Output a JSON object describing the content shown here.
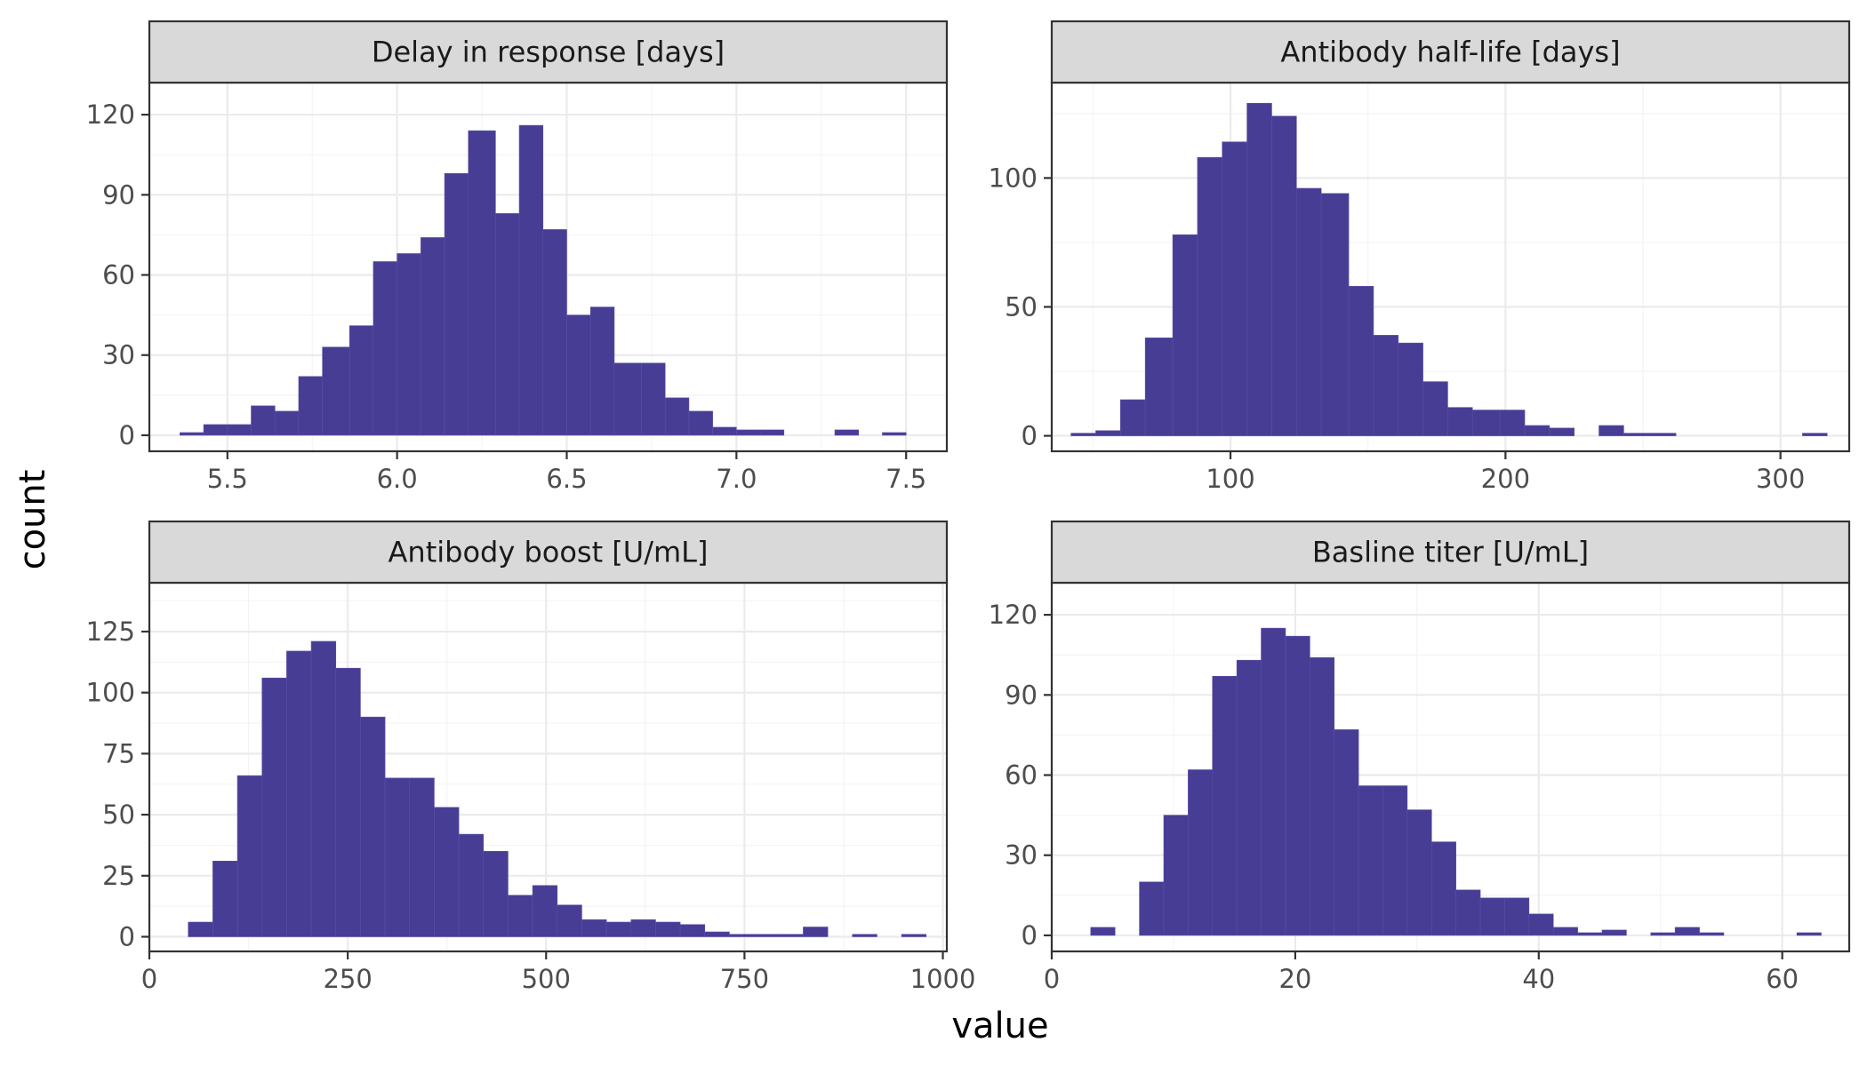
{
  "chart_data": {
    "type": "histogram-facets",
    "xlabel": "value",
    "ylabel": "count",
    "bar_color": "#483D95",
    "panel_background": "#FFFFFF",
    "strip_background": "#D9D9D9",
    "grid": true,
    "facets": [
      {
        "title": "Delay in response [days]",
        "xlim": [
          5.27,
          7.62
        ],
        "ylim": [
          -6,
          132
        ],
        "x_ticks": [
          5.5,
          6.0,
          6.5,
          7.0,
          7.5
        ],
        "x_tick_labels": [
          "5.5",
          "6.0",
          "6.5",
          "7.0",
          "7.5"
        ],
        "y_ticks": [
          0,
          30,
          60,
          90,
          120
        ],
        "y_tick_labels": [
          "0",
          "30",
          "60",
          "90",
          "120"
        ],
        "bins": [
          {
            "x0": 5.36,
            "x1": 5.43,
            "count": 1
          },
          {
            "x0": 5.43,
            "x1": 5.5,
            "count": 4
          },
          {
            "x0": 5.5,
            "x1": 5.57,
            "count": 4
          },
          {
            "x0": 5.57,
            "x1": 5.64,
            "count": 11
          },
          {
            "x0": 5.64,
            "x1": 5.71,
            "count": 9
          },
          {
            "x0": 5.71,
            "x1": 5.78,
            "count": 22
          },
          {
            "x0": 5.78,
            "x1": 5.86,
            "count": 33
          },
          {
            "x0": 5.86,
            "x1": 5.93,
            "count": 41
          },
          {
            "x0": 5.93,
            "x1": 6.0,
            "count": 65
          },
          {
            "x0": 6.0,
            "x1": 6.07,
            "count": 68
          },
          {
            "x0": 6.07,
            "x1": 6.14,
            "count": 74
          },
          {
            "x0": 6.14,
            "x1": 6.21,
            "count": 98
          },
          {
            "x0": 6.21,
            "x1": 6.29,
            "count": 114
          },
          {
            "x0": 6.29,
            "x1": 6.36,
            "count": 83
          },
          {
            "x0": 6.36,
            "x1": 6.43,
            "count": 116
          },
          {
            "x0": 6.43,
            "x1": 6.5,
            "count": 77
          },
          {
            "x0": 6.5,
            "x1": 6.57,
            "count": 45
          },
          {
            "x0": 6.57,
            "x1": 6.64,
            "count": 48
          },
          {
            "x0": 6.64,
            "x1": 6.72,
            "count": 27
          },
          {
            "x0": 6.72,
            "x1": 6.79,
            "count": 27
          },
          {
            "x0": 6.79,
            "x1": 6.86,
            "count": 14
          },
          {
            "x0": 6.86,
            "x1": 6.93,
            "count": 9
          },
          {
            "x0": 6.93,
            "x1": 7.0,
            "count": 3
          },
          {
            "x0": 7.0,
            "x1": 7.07,
            "count": 2
          },
          {
            "x0": 7.07,
            "x1": 7.14,
            "count": 2
          },
          {
            "x0": 7.14,
            "x1": 7.21,
            "count": 0
          },
          {
            "x0": 7.21,
            "x1": 7.29,
            "count": 0
          },
          {
            "x0": 7.29,
            "x1": 7.36,
            "count": 2
          },
          {
            "x0": 7.36,
            "x1": 7.43,
            "count": 0
          },
          {
            "x0": 7.43,
            "x1": 7.5,
            "count": 1
          }
        ]
      },
      {
        "title": "Antibody half-life [days]",
        "xlim": [
          35,
          325
        ],
        "ylim": [
          -6,
          137
        ],
        "x_ticks": [
          100,
          200,
          300
        ],
        "x_tick_labels": [
          "100",
          "200",
          "300"
        ],
        "y_ticks": [
          0,
          50,
          100
        ],
        "y_tick_labels": [
          "0",
          "50",
          "100"
        ],
        "bins": [
          {
            "x0": 42,
            "x1": 51,
            "count": 1
          },
          {
            "x0": 51,
            "x1": 60,
            "count": 2
          },
          {
            "x0": 60,
            "x1": 69,
            "count": 14
          },
          {
            "x0": 69,
            "x1": 79,
            "count": 38
          },
          {
            "x0": 79,
            "x1": 88,
            "count": 78
          },
          {
            "x0": 88,
            "x1": 97,
            "count": 108
          },
          {
            "x0": 97,
            "x1": 106,
            "count": 114
          },
          {
            "x0": 106,
            "x1": 115,
            "count": 129
          },
          {
            "x0": 115,
            "x1": 124,
            "count": 124
          },
          {
            "x0": 124,
            "x1": 133,
            "count": 96
          },
          {
            "x0": 133,
            "x1": 143,
            "count": 94
          },
          {
            "x0": 143,
            "x1": 152,
            "count": 58
          },
          {
            "x0": 152,
            "x1": 161,
            "count": 39
          },
          {
            "x0": 161,
            "x1": 170,
            "count": 36
          },
          {
            "x0": 170,
            "x1": 179,
            "count": 21
          },
          {
            "x0": 179,
            "x1": 188,
            "count": 11
          },
          {
            "x0": 188,
            "x1": 198,
            "count": 10
          },
          {
            "x0": 198,
            "x1": 207,
            "count": 10
          },
          {
            "x0": 207,
            "x1": 216,
            "count": 4
          },
          {
            "x0": 216,
            "x1": 225,
            "count": 3
          },
          {
            "x0": 225,
            "x1": 234,
            "count": 0
          },
          {
            "x0": 234,
            "x1": 243,
            "count": 4
          },
          {
            "x0": 243,
            "x1": 253,
            "count": 1
          },
          {
            "x0": 253,
            "x1": 262,
            "count": 1
          },
          {
            "x0": 262,
            "x1": 271,
            "count": 0
          },
          {
            "x0": 271,
            "x1": 280,
            "count": 0
          },
          {
            "x0": 280,
            "x1": 289,
            "count": 0
          },
          {
            "x0": 289,
            "x1": 298,
            "count": 0
          },
          {
            "x0": 298,
            "x1": 308,
            "count": 0
          },
          {
            "x0": 308,
            "x1": 317,
            "count": 1
          }
        ]
      },
      {
        "title": "Antibody boost [U/mL]",
        "xlim": [
          0,
          1005
        ],
        "ylim": [
          -6,
          145
        ],
        "x_ticks": [
          0,
          250,
          500,
          750,
          1000
        ],
        "x_tick_labels": [
          "0",
          "250",
          "500",
          "750",
          "1000"
        ],
        "y_ticks": [
          0,
          25,
          50,
          75,
          100,
          125
        ],
        "y_tick_labels": [
          "0",
          "25",
          "50",
          "75",
          "100",
          "125"
        ],
        "bins": [
          {
            "x0": 49,
            "x1": 80,
            "count": 6
          },
          {
            "x0": 80,
            "x1": 111,
            "count": 31
          },
          {
            "x0": 111,
            "x1": 142,
            "count": 66
          },
          {
            "x0": 142,
            "x1": 173,
            "count": 106
          },
          {
            "x0": 173,
            "x1": 204,
            "count": 117
          },
          {
            "x0": 204,
            "x1": 235,
            "count": 121
          },
          {
            "x0": 235,
            "x1": 266,
            "count": 110
          },
          {
            "x0": 266,
            "x1": 297,
            "count": 90
          },
          {
            "x0": 297,
            "x1": 328,
            "count": 65
          },
          {
            "x0": 328,
            "x1": 359,
            "count": 65
          },
          {
            "x0": 359,
            "x1": 390,
            "count": 53
          },
          {
            "x0": 390,
            "x1": 421,
            "count": 42
          },
          {
            "x0": 421,
            "x1": 452,
            "count": 35
          },
          {
            "x0": 452,
            "x1": 483,
            "count": 17
          },
          {
            "x0": 483,
            "x1": 514,
            "count": 21
          },
          {
            "x0": 514,
            "x1": 545,
            "count": 13
          },
          {
            "x0": 545,
            "x1": 576,
            "count": 7
          },
          {
            "x0": 576,
            "x1": 607,
            "count": 6
          },
          {
            "x0": 607,
            "x1": 638,
            "count": 7
          },
          {
            "x0": 638,
            "x1": 669,
            "count": 6
          },
          {
            "x0": 669,
            "x1": 700,
            "count": 5
          },
          {
            "x0": 700,
            "x1": 731,
            "count": 2
          },
          {
            "x0": 731,
            "x1": 762,
            "count": 1
          },
          {
            "x0": 762,
            "x1": 793,
            "count": 1
          },
          {
            "x0": 793,
            "x1": 824,
            "count": 1
          },
          {
            "x0": 824,
            "x1": 855,
            "count": 4
          },
          {
            "x0": 855,
            "x1": 886,
            "count": 0
          },
          {
            "x0": 886,
            "x1": 917,
            "count": 1
          },
          {
            "x0": 917,
            "x1": 948,
            "count": 0
          },
          {
            "x0": 948,
            "x1": 979,
            "count": 1
          }
        ]
      },
      {
        "title": "Basline titer [U/mL]",
        "xlim": [
          0,
          65.5
        ],
        "ylim": [
          -6,
          132
        ],
        "x_ticks": [
          0,
          20,
          40,
          60
        ],
        "x_tick_labels": [
          "0",
          "20",
          "40",
          "60"
        ],
        "y_ticks": [
          0,
          30,
          60,
          90,
          120
        ],
        "y_tick_labels": [
          "0",
          "30",
          "60",
          "90",
          "120"
        ],
        "bins": [
          {
            "x0": 3.2,
            "x1": 5.2,
            "count": 3
          },
          {
            "x0": 5.2,
            "x1": 7.2,
            "count": 0
          },
          {
            "x0": 7.2,
            "x1": 9.2,
            "count": 20
          },
          {
            "x0": 9.2,
            "x1": 11.2,
            "count": 45
          },
          {
            "x0": 11.2,
            "x1": 13.2,
            "count": 62
          },
          {
            "x0": 13.2,
            "x1": 15.2,
            "count": 97
          },
          {
            "x0": 15.2,
            "x1": 17.2,
            "count": 103
          },
          {
            "x0": 17.2,
            "x1": 19.2,
            "count": 115
          },
          {
            "x0": 19.2,
            "x1": 21.2,
            "count": 112
          },
          {
            "x0": 21.2,
            "x1": 23.2,
            "count": 104
          },
          {
            "x0": 23.2,
            "x1": 25.2,
            "count": 77
          },
          {
            "x0": 25.2,
            "x1": 27.2,
            "count": 56
          },
          {
            "x0": 27.2,
            "x1": 29.2,
            "count": 56
          },
          {
            "x0": 29.2,
            "x1": 31.2,
            "count": 47
          },
          {
            "x0": 31.2,
            "x1": 33.2,
            "count": 35
          },
          {
            "x0": 33.2,
            "x1": 35.2,
            "count": 17
          },
          {
            "x0": 35.2,
            "x1": 37.2,
            "count": 14
          },
          {
            "x0": 37.2,
            "x1": 39.2,
            "count": 14
          },
          {
            "x0": 39.2,
            "x1": 41.2,
            "count": 8
          },
          {
            "x0": 41.2,
            "x1": 43.2,
            "count": 3
          },
          {
            "x0": 43.2,
            "x1": 45.2,
            "count": 1
          },
          {
            "x0": 45.2,
            "x1": 47.2,
            "count": 2
          },
          {
            "x0": 47.2,
            "x1": 49.2,
            "count": 0
          },
          {
            "x0": 49.2,
            "x1": 51.2,
            "count": 1
          },
          {
            "x0": 51.2,
            "x1": 53.2,
            "count": 3
          },
          {
            "x0": 53.2,
            "x1": 55.2,
            "count": 1
          },
          {
            "x0": 55.2,
            "x1": 57.2,
            "count": 0
          },
          {
            "x0": 57.2,
            "x1": 59.2,
            "count": 0
          },
          {
            "x0": 59.2,
            "x1": 61.2,
            "count": 0
          },
          {
            "x0": 61.2,
            "x1": 63.2,
            "count": 1
          }
        ]
      }
    ]
  }
}
